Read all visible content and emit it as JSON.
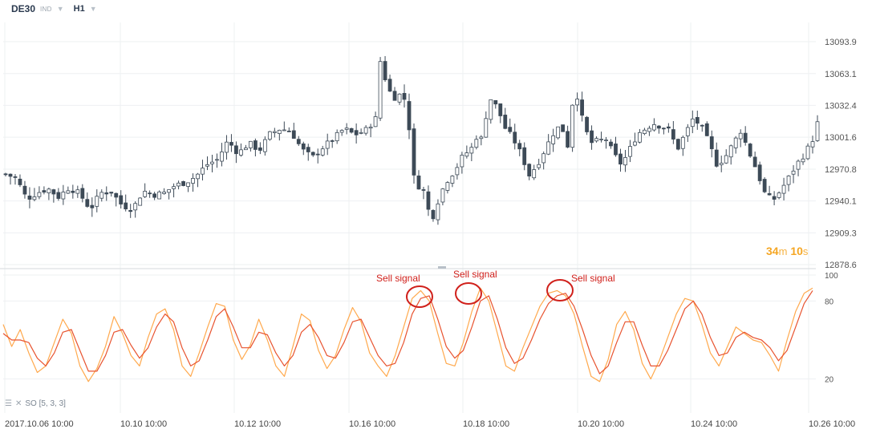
{
  "toolbar": {
    "symbol": "DE30",
    "instrument_type": "IND",
    "timeframe": "H1",
    "dropdown_icon": "chevron-down-icon"
  },
  "countdown": {
    "minutes": "34",
    "minutes_unit": "m",
    "seconds": "10",
    "seconds_unit": "s"
  },
  "oscillator_label": {
    "text": "SO [5, 3, 3]",
    "icons": [
      "menu-icon",
      "close-icon"
    ]
  },
  "colors": {
    "bull": "#ffffff",
    "bear": "#3d4a57",
    "candle_outline": "#3d4a57",
    "k_line": "#ffa94d",
    "d_line": "#e8532f",
    "annotation": "#d0201b",
    "countdown": "#f5a623",
    "grid": "#eef0f2"
  },
  "chart_data": [
    {
      "type": "candlestick",
      "title": "DE30 H1",
      "y_ticks": [
        "13093.9",
        "13063.1",
        "13032.4",
        "13001.6",
        "12970.8",
        "12940.1",
        "12909.3",
        "12878.6"
      ],
      "y_range": [
        12878.6,
        13093.9
      ],
      "x_ticks": [
        "2017.10.06  10:00",
        "10.10  10:00",
        "10.12  10:00",
        "10.16  10:00",
        "10.18  10:00",
        "10.20  10:00",
        "10.24  10:00",
        "10.26  10:00"
      ],
      "grid": true,
      "close_path": [
        [
          0,
          12966
        ],
        [
          8,
          12962
        ],
        [
          16,
          12942
        ],
        [
          24,
          12948
        ],
        [
          32,
          12952
        ],
        [
          40,
          12944
        ],
        [
          48,
          12953
        ],
        [
          56,
          12947
        ],
        [
          64,
          12932
        ],
        [
          72,
          12948
        ],
        [
          80,
          12949
        ],
        [
          88,
          12936
        ],
        [
          96,
          12932
        ],
        [
          104,
          12950
        ],
        [
          112,
          12946
        ],
        [
          120,
          12948
        ],
        [
          128,
          12955
        ],
        [
          136,
          12958
        ],
        [
          144,
          12964
        ],
        [
          152,
          12975
        ],
        [
          160,
          12980
        ],
        [
          168,
          12998
        ],
        [
          176,
          12986
        ],
        [
          184,
          12996
        ],
        [
          192,
          12989
        ],
        [
          200,
          13005
        ],
        [
          208,
          13010
        ],
        [
          216,
          13007
        ],
        [
          224,
          12990
        ],
        [
          232,
          12982
        ],
        [
          240,
          12992
        ],
        [
          248,
          13000
        ],
        [
          256,
          13010
        ],
        [
          264,
          13004
        ],
        [
          272,
          13008
        ],
        [
          280,
          13020
        ],
        [
          284,
          13085
        ],
        [
          288,
          13050
        ],
        [
          294,
          13040
        ],
        [
          300,
          13044
        ],
        [
          304,
          13030
        ],
        [
          308,
          12965
        ],
        [
          312,
          12955
        ],
        [
          316,
          12950
        ],
        [
          320,
          12930
        ],
        [
          324,
          12925
        ],
        [
          328,
          12945
        ],
        [
          334,
          12960
        ],
        [
          340,
          12970
        ],
        [
          346,
          12984
        ],
        [
          352,
          12990
        ],
        [
          356,
          13002
        ],
        [
          360,
          13000
        ],
        [
          366,
          13040
        ],
        [
          372,
          13030
        ],
        [
          378,
          13010
        ],
        [
          384,
          13000
        ],
        [
          390,
          12985
        ],
        [
          396,
          12965
        ],
        [
          402,
          12975
        ],
        [
          408,
          12990
        ],
        [
          414,
          13005
        ],
        [
          420,
          13014
        ],
        [
          426,
          12990
        ],
        [
          430,
          13055
        ],
        [
          436,
          13020
        ],
        [
          442,
          12996
        ],
        [
          448,
          12998
        ],
        [
          454,
          13000
        ],
        [
          460,
          12985
        ],
        [
          466,
          12975
        ],
        [
          472,
          12990
        ],
        [
          478,
          13005
        ],
        [
          484,
          13010
        ],
        [
          490,
          13015
        ],
        [
          496,
          13012
        ],
        [
          502,
          13008
        ],
        [
          508,
          12990
        ],
        [
          514,
          13005
        ],
        [
          520,
          13020
        ],
        [
          526,
          13012
        ],
        [
          532,
          12996
        ],
        [
          538,
          12975
        ],
        [
          544,
          12982
        ],
        [
          550,
          12995
        ],
        [
          556,
          13008
        ],
        [
          562,
          12988
        ],
        [
          568,
          12970
        ],
        [
          574,
          12948
        ],
        [
          580,
          12940
        ],
        [
          586,
          12950
        ],
        [
          592,
          12962
        ],
        [
          598,
          12975
        ],
        [
          604,
          12985
        ],
        [
          610,
          12998
        ],
        [
          614,
          13015
        ]
      ],
      "annotations": []
    },
    {
      "type": "line",
      "title": "SO [5, 3, 3]",
      "y_ticks": [
        "100",
        "80",
        "20"
      ],
      "y_range": [
        0,
        100
      ],
      "x_ticks": [
        "2017.10.06  10:00",
        "10.10  10:00",
        "10.12  10:00",
        "10.16  10:00",
        "10.18  10:00",
        "10.20  10:00",
        "10.24  10:00",
        "10.26  10:00"
      ],
      "annotations": [
        {
          "text": "Sell signal",
          "at_index": 49
        },
        {
          "text": "Sell signal",
          "at_index": 56
        },
        {
          "text": "Sell signal",
          "at_index": 67
        }
      ],
      "series": [
        {
          "name": "%K",
          "values": [
            62,
            45,
            58,
            40,
            25,
            30,
            48,
            66,
            55,
            30,
            18,
            28,
            45,
            68,
            55,
            38,
            30,
            52,
            70,
            74,
            58,
            30,
            22,
            40,
            60,
            78,
            76,
            50,
            35,
            46,
            66,
            50,
            30,
            22,
            45,
            70,
            65,
            42,
            28,
            38,
            58,
            75,
            64,
            40,
            30,
            22,
            38,
            60,
            82,
            88,
            80,
            55,
            32,
            30,
            48,
            72,
            90,
            80,
            55,
            30,
            26,
            44,
            60,
            76,
            86,
            88,
            84,
            70,
            45,
            22,
            18,
            35,
            62,
            72,
            58,
            32,
            20,
            34,
            52,
            70,
            82,
            80,
            62,
            40,
            30,
            45,
            60,
            55,
            50,
            48,
            38,
            26,
            50,
            72,
            86,
            90
          ]
        },
        {
          "name": "%D",
          "values": [
            55,
            50,
            50,
            48,
            36,
            30,
            40,
            56,
            58,
            42,
            26,
            26,
            38,
            56,
            58,
            46,
            36,
            44,
            60,
            70,
            64,
            44,
            30,
            34,
            50,
            68,
            74,
            60,
            44,
            44,
            56,
            54,
            40,
            30,
            38,
            56,
            62,
            52,
            38,
            36,
            48,
            64,
            66,
            52,
            38,
            30,
            32,
            48,
            70,
            82,
            84,
            66,
            45,
            36,
            42,
            60,
            80,
            84,
            66,
            44,
            32,
            36,
            50,
            66,
            78,
            84,
            86,
            76,
            58,
            38,
            24,
            30,
            48,
            64,
            64,
            46,
            30,
            30,
            42,
            58,
            74,
            80,
            70,
            52,
            38,
            40,
            52,
            56,
            52,
            50,
            44,
            34,
            42,
            60,
            78,
            88
          ]
        }
      ]
    }
  ]
}
